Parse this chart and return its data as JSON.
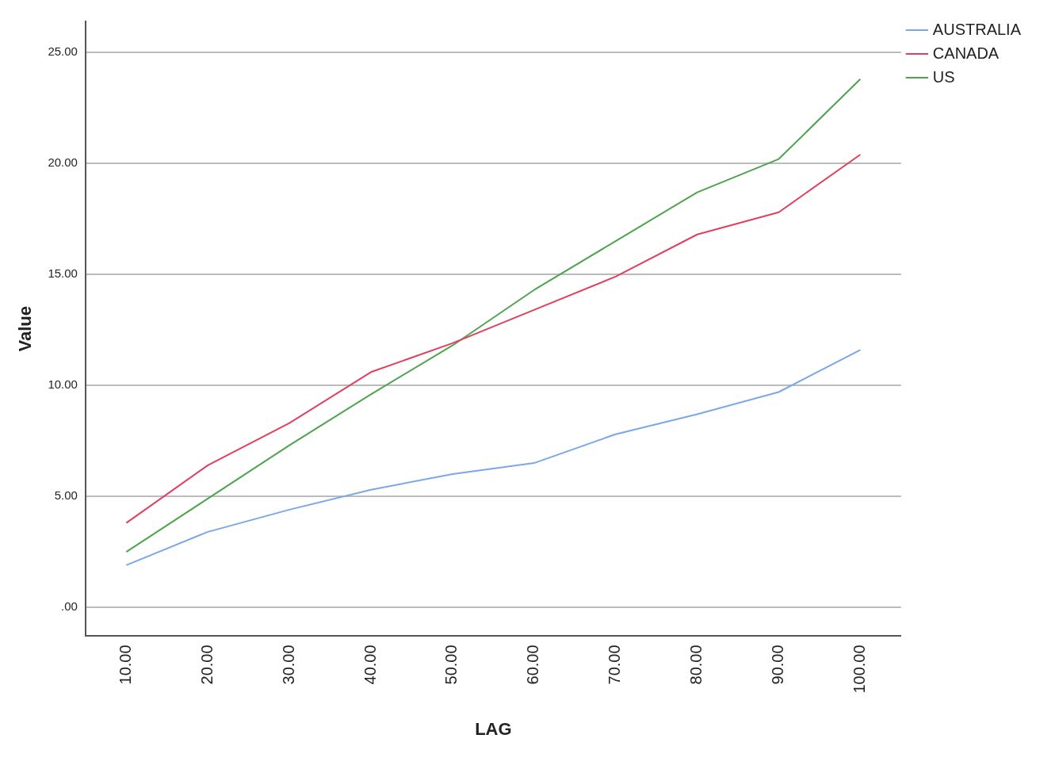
{
  "chart_data": {
    "type": "line",
    "xlabel": "LAG",
    "ylabel": "Value",
    "categories": [
      "10.00",
      "20.00",
      "30.00",
      "40.00",
      "50.00",
      "60.00",
      "70.00",
      "80.00",
      "90.00",
      "100.00"
    ],
    "series": [
      {
        "name": "AUSTRALIA",
        "color": "#7aa7e8",
        "values": [
          1.9,
          3.4,
          4.4,
          5.3,
          6.0,
          6.5,
          7.8,
          8.7,
          9.7,
          11.6
        ]
      },
      {
        "name": "CANADA",
        "color": "#e0405e",
        "values": [
          3.8,
          6.4,
          8.3,
          10.6,
          11.9,
          13.4,
          14.9,
          16.8,
          17.8,
          20.4
        ]
      },
      {
        "name": "US",
        "color": "#4fa34f",
        "values": [
          2.5,
          4.9,
          7.3,
          9.6,
          11.8,
          14.3,
          16.5,
          18.7,
          20.2,
          23.8
        ]
      }
    ],
    "ylim": [
      -1.3,
      26.4
    ],
    "yticks": [
      {
        "value": 0,
        "label": ".00"
      },
      {
        "value": 5,
        "label": "5.00"
      },
      {
        "value": 10,
        "label": "10.00"
      },
      {
        "value": 15,
        "label": "15.00"
      },
      {
        "value": 20,
        "label": "20.00"
      },
      {
        "value": 25,
        "label": "25.00"
      }
    ],
    "grid": "y",
    "legend": "top right",
    "marker": "none",
    "line_style": "solid"
  }
}
